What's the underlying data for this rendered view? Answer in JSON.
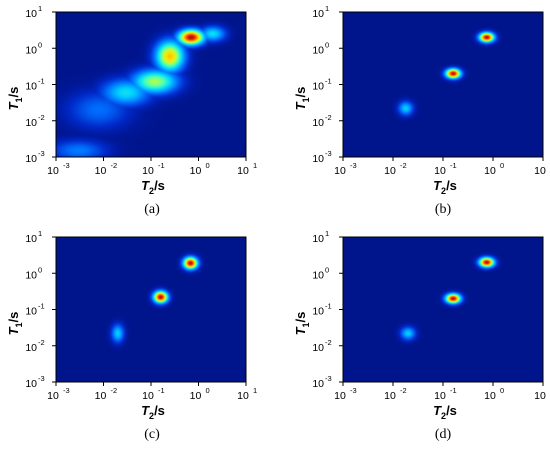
{
  "figure": {
    "x_tick_labels": [
      "10",
      "10",
      "10",
      "10",
      "10"
    ],
    "x_tick_exponents": [
      "-3",
      "-2",
      "-1",
      "0",
      "1"
    ],
    "y_tick_labels": [
      "10",
      "10",
      "10",
      "10",
      "10"
    ],
    "y_tick_exponents": [
      "1",
      "0",
      "-1",
      "-2",
      "-3"
    ],
    "x_axis_label": {
      "main": "T",
      "sub": "2",
      "unit": "/s"
    },
    "y_axis_label": {
      "main": "T",
      "sub": "1",
      "unit": "/s"
    }
  },
  "colors": {
    "background": "#00148c",
    "peak": "#d21e0a"
  },
  "chart_data": [
    {
      "type": "heatmap",
      "panel_label": "(a)",
      "x_scale": "log",
      "y_scale": "log",
      "xlim": [
        0.001,
        10
      ],
      "ylim": [
        0.001,
        10
      ],
      "grid": false,
      "peaks": [
        {
          "T2": 0.7,
          "T1": 2.0,
          "intensity": 1.0,
          "sx": 0.18,
          "sy": 0.14
        },
        {
          "T2": 0.25,
          "T1": 0.6,
          "intensity": 0.72,
          "sx": 0.2,
          "sy": 0.28
        },
        {
          "T2": 0.12,
          "T1": 0.12,
          "intensity": 0.55,
          "sx": 0.32,
          "sy": 0.22
        },
        {
          "T2": 0.03,
          "T1": 0.06,
          "intensity": 0.35,
          "sx": 0.35,
          "sy": 0.25
        },
        {
          "T2": 0.008,
          "T1": 0.02,
          "intensity": 0.18,
          "sx": 0.45,
          "sy": 0.35
        },
        {
          "T2": 0.003,
          "T1": 0.0015,
          "intensity": 0.2,
          "sx": 0.4,
          "sy": 0.2
        },
        {
          "T2": 2.0,
          "T1": 2.5,
          "intensity": 0.35,
          "sx": 0.18,
          "sy": 0.14
        }
      ]
    },
    {
      "type": "heatmap",
      "panel_label": "(b)",
      "x_scale": "log",
      "y_scale": "log",
      "xlim": [
        0.001,
        10
      ],
      "ylim": [
        0.001,
        10
      ],
      "grid": false,
      "peaks": [
        {
          "T2": 0.75,
          "T1": 2.0,
          "intensity": 1.0,
          "sx": 0.1,
          "sy": 0.09
        },
        {
          "T2": 0.16,
          "T1": 0.2,
          "intensity": 1.0,
          "sx": 0.1,
          "sy": 0.09
        },
        {
          "T2": 0.018,
          "T1": 0.022,
          "intensity": 0.32,
          "sx": 0.1,
          "sy": 0.13
        }
      ]
    },
    {
      "type": "heatmap",
      "panel_label": "(c)",
      "x_scale": "log",
      "y_scale": "log",
      "xlim": [
        0.001,
        10
      ],
      "ylim": [
        0.001,
        10
      ],
      "grid": false,
      "peaks": [
        {
          "T2": 0.68,
          "T1": 1.9,
          "intensity": 1.0,
          "sx": 0.1,
          "sy": 0.11
        },
        {
          "T2": 0.16,
          "T1": 0.22,
          "intensity": 1.0,
          "sx": 0.1,
          "sy": 0.11
        },
        {
          "T2": 0.02,
          "T1": 0.022,
          "intensity": 0.32,
          "sx": 0.09,
          "sy": 0.17
        }
      ]
    },
    {
      "type": "heatmap",
      "panel_label": "(d)",
      "x_scale": "log",
      "y_scale": "log",
      "xlim": [
        0.001,
        10
      ],
      "ylim": [
        0.001,
        10
      ],
      "grid": false,
      "peaks": [
        {
          "T2": 0.75,
          "T1": 2.0,
          "intensity": 1.0,
          "sx": 0.1,
          "sy": 0.09
        },
        {
          "T2": 0.16,
          "T1": 0.2,
          "intensity": 1.0,
          "sx": 0.1,
          "sy": 0.09
        },
        {
          "T2": 0.02,
          "T1": 0.022,
          "intensity": 0.32,
          "sx": 0.1,
          "sy": 0.12
        }
      ]
    }
  ]
}
